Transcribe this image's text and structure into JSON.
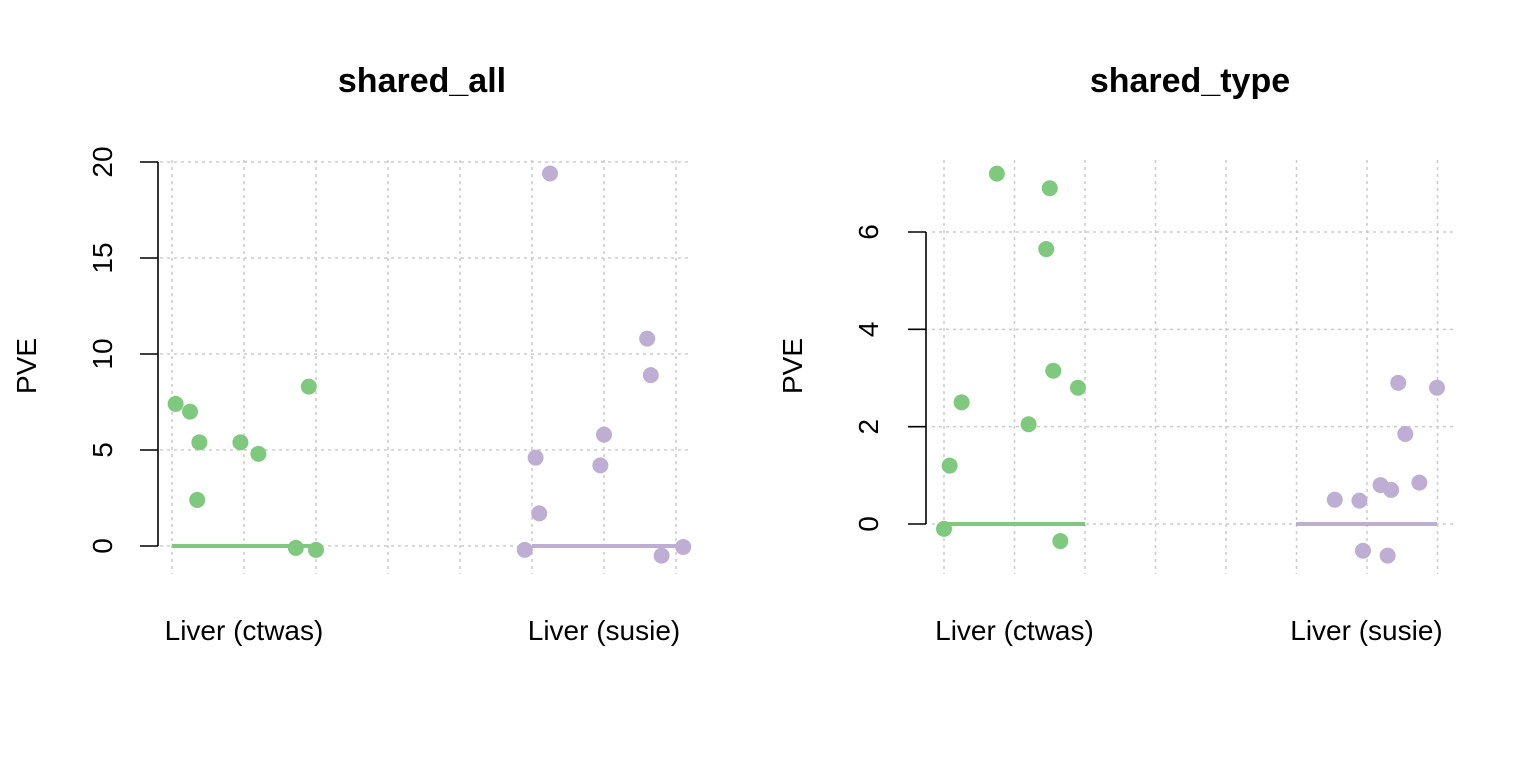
{
  "chart_data": [
    {
      "type": "scatter",
      "title": "shared_all",
      "ylabel": "PVE",
      "xlabel": "",
      "categories": [
        "Liver (ctwas)",
        "Liver (susie)"
      ],
      "ylim": [
        -1.2,
        20
      ],
      "yticks": [
        0,
        5,
        10,
        15,
        20
      ],
      "grid": true,
      "series": [
        {
          "category": "Liver (ctwas)",
          "color": "#7fc97f",
          "median": 0,
          "points": [
            {
              "x": 0.05,
              "y": 7.4
            },
            {
              "x": 0.25,
              "y": 7.0
            },
            {
              "x": 0.35,
              "y": 2.4
            },
            {
              "x": 0.38,
              "y": 5.4
            },
            {
              "x": 0.95,
              "y": 5.4
            },
            {
              "x": 1.2,
              "y": 4.8
            },
            {
              "x": 1.72,
              "y": -0.1
            },
            {
              "x": 1.9,
              "y": 8.3
            },
            {
              "x": 2.0,
              "y": -0.2
            }
          ]
        },
        {
          "category": "Liver (susie)",
          "color": "#beaed4",
          "median": 0,
          "points": [
            {
              "x": -0.1,
              "y": -0.2
            },
            {
              "x": 0.05,
              "y": 4.6
            },
            {
              "x": 0.1,
              "y": 1.7
            },
            {
              "x": 0.25,
              "y": 19.4
            },
            {
              "x": 0.95,
              "y": 4.2
            },
            {
              "x": 1.0,
              "y": 5.8
            },
            {
              "x": 1.6,
              "y": 10.8
            },
            {
              "x": 1.65,
              "y": 8.9
            },
            {
              "x": 1.8,
              "y": -0.5
            },
            {
              "x": 2.1,
              "y": -0.05
            }
          ]
        }
      ]
    },
    {
      "type": "scatter",
      "title": "shared_type",
      "ylabel": "PVE",
      "xlabel": "",
      "categories": [
        "Liver (ctwas)",
        "Liver (susie)"
      ],
      "ylim": [
        -0.8,
        7.6
      ],
      "yticks": [
        0,
        2,
        4,
        6
      ],
      "grid": true,
      "series": [
        {
          "category": "Liver (ctwas)",
          "color": "#7fc97f",
          "median": 0,
          "points": [
            {
              "x": 0.0,
              "y": -0.1
            },
            {
              "x": 0.08,
              "y": 1.2
            },
            {
              "x": 0.25,
              "y": 2.5
            },
            {
              "x": 0.75,
              "y": 7.2
            },
            {
              "x": 1.2,
              "y": 2.05
            },
            {
              "x": 1.45,
              "y": 5.65
            },
            {
              "x": 1.5,
              "y": 6.9
            },
            {
              "x": 1.55,
              "y": 3.15
            },
            {
              "x": 1.65,
              "y": -0.35
            },
            {
              "x": 1.9,
              "y": 2.8
            }
          ]
        },
        {
          "category": "Liver (susie)",
          "color": "#beaed4",
          "median": 0,
          "points": [
            {
              "x": 0.55,
              "y": 0.5
            },
            {
              "x": 0.9,
              "y": 0.48
            },
            {
              "x": 0.95,
              "y": -0.55
            },
            {
              "x": 1.2,
              "y": 0.8
            },
            {
              "x": 1.3,
              "y": -0.65
            },
            {
              "x": 1.35,
              "y": 0.7
            },
            {
              "x": 1.45,
              "y": 2.9
            },
            {
              "x": 1.55,
              "y": 1.85
            },
            {
              "x": 1.75,
              "y": 0.85
            },
            {
              "x": 2.0,
              "y": 2.8
            }
          ]
        }
      ]
    }
  ]
}
